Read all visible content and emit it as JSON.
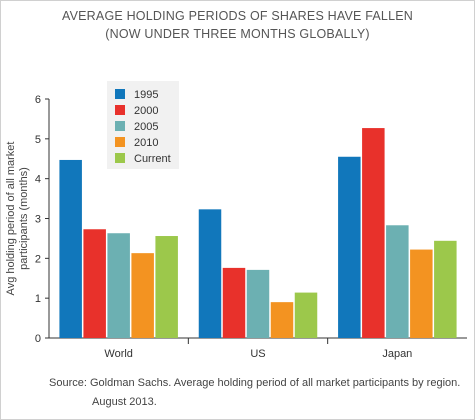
{
  "chart_data": {
    "type": "bar",
    "title": "AVERAGE HOLDING PERIODS OF SHARES HAVE FALLEN",
    "subtitle": "(NOW UNDER THREE MONTHS GLOBALLY)",
    "xlabel": "",
    "ylabel": "Avg holding period of all market participants (months)",
    "ylabel_lines": [
      "Avg holding period of all market",
      "participants (months)"
    ],
    "ylim": [
      0,
      6
    ],
    "yticks": [
      0,
      1,
      2,
      3,
      4,
      5,
      6
    ],
    "grid": false,
    "legend_position": "top-left",
    "categories": [
      "World",
      "US",
      "Japan"
    ],
    "series": [
      {
        "name": "1995",
        "color": "#1177bb",
        "values": [
          4.47,
          3.23,
          4.55
        ]
      },
      {
        "name": "2000",
        "color": "#e8312b",
        "values": [
          2.73,
          1.76,
          5.27
        ]
      },
      {
        "name": "2005",
        "color": "#6cb0b2",
        "values": [
          2.63,
          1.71,
          2.83
        ]
      },
      {
        "name": "2010",
        "color": "#f39321",
        "values": [
          2.13,
          0.9,
          2.22
        ]
      },
      {
        "name": "Current",
        "color": "#9cc84b",
        "values": [
          2.56,
          1.14,
          2.44
        ]
      }
    ]
  },
  "caption": {
    "line1": "Source: Goldman Sachs. Average holding period of all market participants by region.",
    "line2": "August 2013."
  }
}
